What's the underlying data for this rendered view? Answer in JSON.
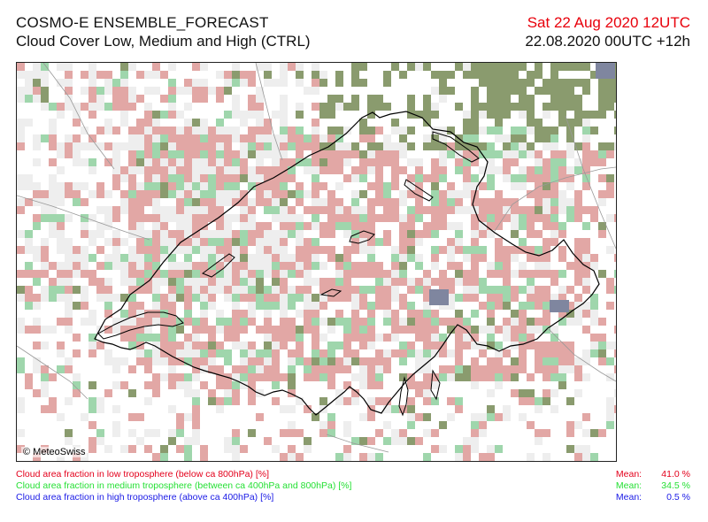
{
  "header": {
    "title": "COSMO-E ENSEMBLE_FORECAST",
    "subtitle": "Cloud Cover Low, Medium and High (CTRL)",
    "valid_time": "Sat 22 Aug 2020 12UTC",
    "run_time": "22.08.2020 00UTC +12h"
  },
  "colors": {
    "valid_time": "#e8000b",
    "low": "#e3001b",
    "medium": "#26e035",
    "high": "#1a1ae6",
    "low_cloud_fill": "#e2a7a5",
    "medium_cloud_fill": "#9fd6ac",
    "overlap_fill": "#8a9b6e",
    "high_cloud_fill": "#7f869f",
    "haze_fill": "#eeeeee"
  },
  "map": {
    "copyright": "© MeteoSwiss"
  },
  "legend": [
    {
      "label": "Cloud area fraction in low troposphere (below ca 800hPa) [%]",
      "mean_label": "Mean:",
      "mean_value": "41.0 %",
      "color_key": "low"
    },
    {
      "label": "Cloud area fraction in medium troposphere (between ca 400hPa and 800hPa) [%]",
      "mean_label": "Mean:",
      "mean_value": "34.5 %",
      "color_key": "medium"
    },
    {
      "label": "Cloud area fraction in high troposphere (above ca 400hPa) [%]",
      "mean_label": "Mean:",
      "mean_value": "0.5 %",
      "color_key": "high"
    }
  ]
}
